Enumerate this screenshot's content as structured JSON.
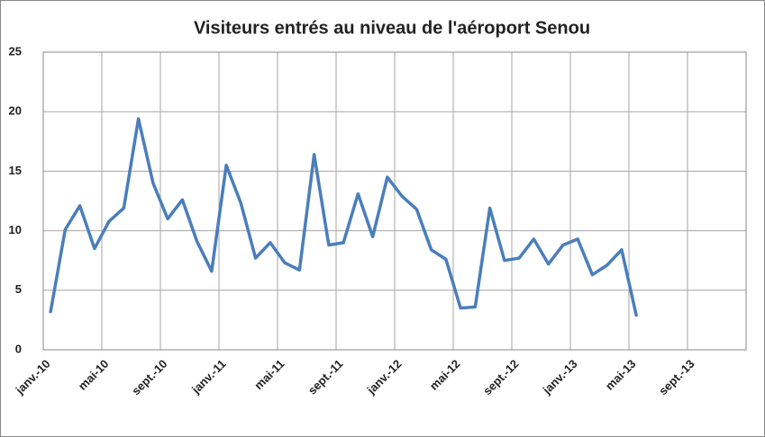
{
  "chart_data": {
    "type": "line",
    "title": "Visiteurs entrés au niveau de l'aéroport Senou",
    "categories": [
      "janv.-10",
      null,
      null,
      null,
      "mai-10",
      null,
      null,
      null,
      "sept.-10",
      null,
      null,
      null,
      "janv.-11",
      null,
      null,
      null,
      "mai-11",
      null,
      null,
      null,
      "sept.-11",
      null,
      null,
      null,
      "janv.-12",
      null,
      null,
      null,
      "mai-12",
      null,
      null,
      null,
      "sept.-12",
      null,
      null,
      null,
      "janv.-13",
      null,
      null,
      null,
      "mai-13",
      null,
      null,
      null,
      "sept.-13",
      null,
      null,
      null
    ],
    "values": [
      3.2,
      10.1,
      12.1,
      8.5,
      10.8,
      11.9,
      19.4,
      14.0,
      11.0,
      12.6,
      9.1,
      6.6,
      15.5,
      12.3,
      7.7,
      9.0,
      7.3,
      6.7,
      16.4,
      8.8,
      9.0,
      13.1,
      9.5,
      14.5,
      12.9,
      11.8,
      8.4,
      7.6,
      3.5,
      3.6,
      11.9,
      7.5,
      7.7,
      9.3,
      7.2,
      8.8,
      9.3,
      6.3,
      7.1,
      8.4,
      2.9,
      null,
      null,
      null,
      null,
      null,
      null,
      null
    ],
    "color": "#4a7ebb",
    "ylim": [
      0,
      25
    ],
    "yticks": [
      0,
      5,
      10,
      15,
      20,
      25
    ],
    "grid": true
  }
}
